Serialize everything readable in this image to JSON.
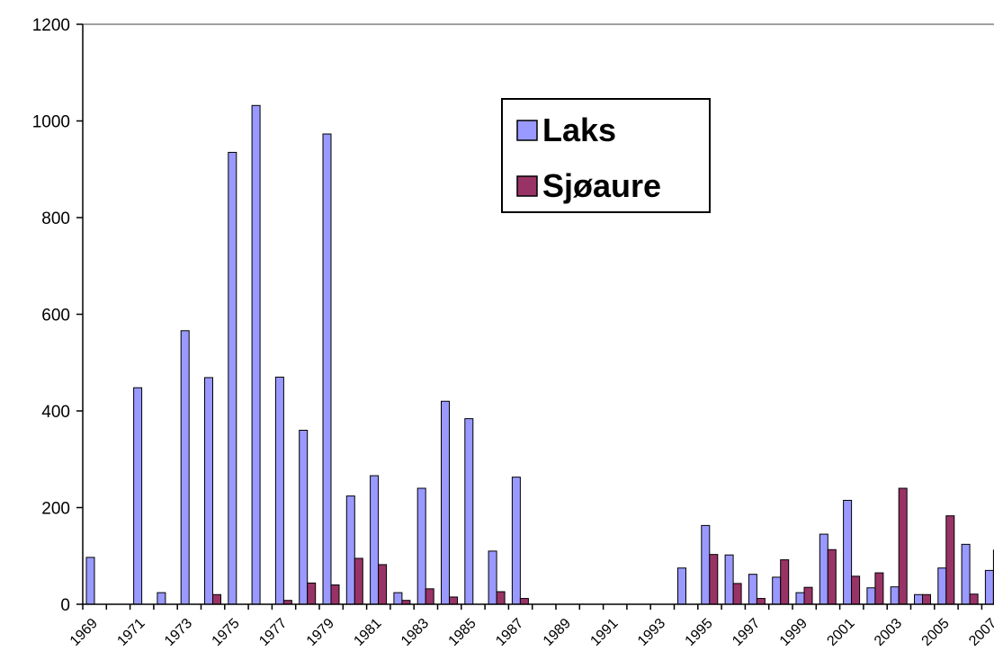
{
  "chart_data": {
    "type": "bar",
    "categories": [
      "1969",
      null,
      "1971",
      null,
      "1973",
      null,
      "1975",
      null,
      "1977",
      null,
      "1979",
      null,
      "1981",
      null,
      "1983",
      null,
      "1985",
      null,
      "1987",
      null,
      "1989",
      null,
      "1991",
      null,
      "1993",
      null,
      "1995",
      null,
      "1997",
      null,
      "1999",
      null,
      "2001",
      null,
      "2003",
      null,
      "2005",
      null,
      "2007"
    ],
    "series": [
      {
        "name": "Laks",
        "color": "#9999ff",
        "values": [
          97,
          0,
          448,
          24,
          566,
          469,
          935,
          1032,
          470,
          360,
          973,
          224,
          266,
          24,
          240,
          420,
          384,
          110,
          263,
          0,
          0,
          0,
          0,
          0,
          0,
          75,
          163,
          102,
          62,
          56,
          24,
          145,
          215,
          34,
          36,
          20,
          75,
          124,
          70
        ]
      },
      {
        "name": "Sjøaure",
        "color": "#993366",
        "values": [
          0,
          0,
          0,
          0,
          0,
          20,
          0,
          0,
          8,
          44,
          40,
          95,
          82,
          8,
          32,
          15,
          0,
          26,
          12,
          0,
          0,
          0,
          0,
          0,
          0,
          0,
          103,
          43,
          12,
          92,
          35,
          113,
          58,
          65,
          240,
          20,
          183,
          21,
          112
        ]
      }
    ],
    "ylim": [
      0,
      1200
    ],
    "yticks": [
      0,
      200,
      400,
      600,
      800,
      1000,
      1200
    ]
  }
}
